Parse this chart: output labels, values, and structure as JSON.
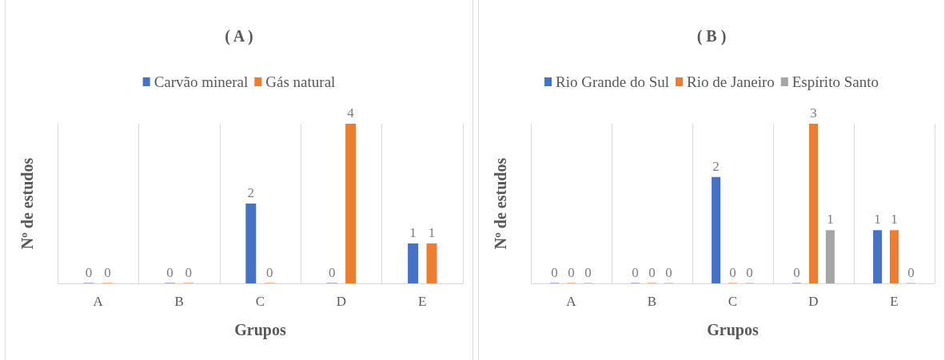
{
  "chart_data": [
    {
      "type": "bar",
      "title": "( A )",
      "xlabel": "Grupos",
      "ylabel": "Nº de estudos",
      "categories": [
        "A",
        "B",
        "C",
        "D",
        "E"
      ],
      "series": [
        {
          "name": "Carvão mineral",
          "color": "#4472c4",
          "values": [
            0,
            0,
            2,
            0,
            1
          ]
        },
        {
          "name": "Gás natural",
          "color": "#ed7d31",
          "values": [
            0,
            0,
            0,
            4,
            1
          ]
        }
      ],
      "data_labels": true,
      "grid": "x",
      "legend": "top"
    },
    {
      "type": "bar",
      "title": "( B )",
      "xlabel": "Grupos",
      "ylabel": "Nº de estudos",
      "categories": [
        "A",
        "B",
        "C",
        "D",
        "E"
      ],
      "series": [
        {
          "name": "Rio Grande do Sul",
          "color": "#4472c4",
          "values": [
            0,
            0,
            2,
            0,
            1
          ]
        },
        {
          "name": "Rio de Janeiro",
          "color": "#ed7d31",
          "values": [
            0,
            0,
            0,
            3,
            1
          ]
        },
        {
          "name": "Espírito Santo",
          "color": "#a5a5a5",
          "values": [
            0,
            0,
            0,
            1,
            0
          ]
        }
      ],
      "data_labels": true,
      "grid": "x",
      "legend": "top"
    }
  ]
}
